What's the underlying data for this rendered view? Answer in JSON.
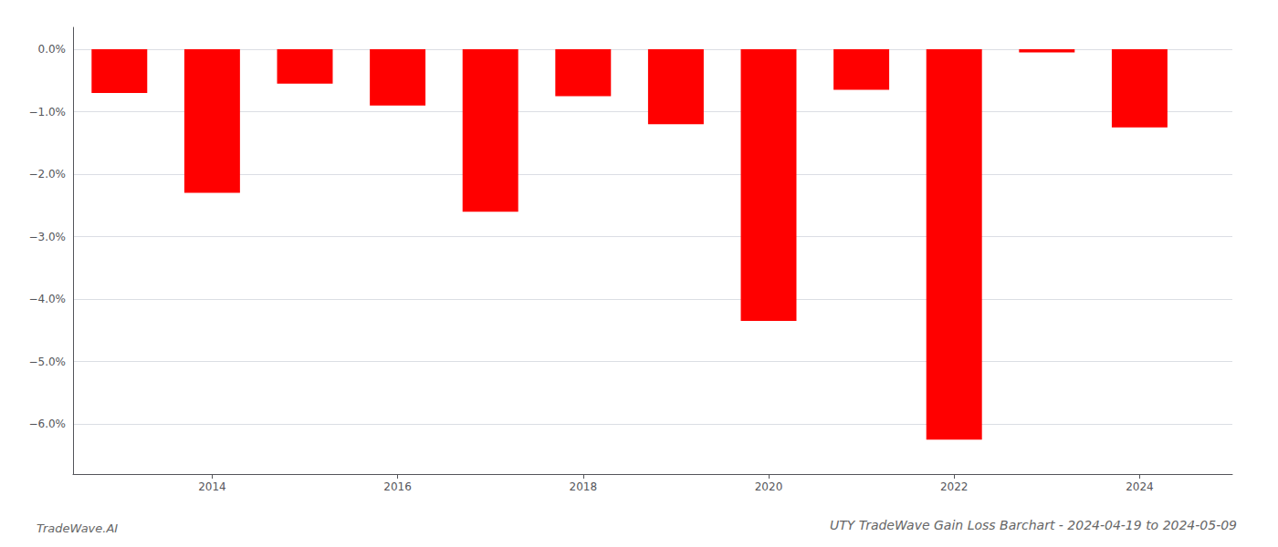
{
  "chart_data": {
    "type": "bar",
    "title": "UTY TradeWave Gain Loss Barchart - 2024-04-19 to 2024-05-09",
    "annotations": [
      "TradeWave.AI"
    ],
    "x": [
      2013,
      2014,
      2015,
      2016,
      2017,
      2018,
      2019,
      2020,
      2021,
      2022,
      2023,
      2024
    ],
    "values": [
      -0.7,
      -2.3,
      -0.55,
      -0.9,
      -2.6,
      -0.75,
      -1.2,
      -4.35,
      -0.65,
      -6.25,
      -0.05,
      -1.25
    ],
    "color": "#ff0000",
    "xlim": [
      2012.5,
      2025
    ],
    "xticks": [
      2014,
      2016,
      2018,
      2020,
      2022,
      2024
    ],
    "ylim": [
      -6.8,
      0.35
    ],
    "yticks": [
      {
        "value": 0.0,
        "label": "0.0%"
      },
      {
        "value": -1.0,
        "label": "−1.0%"
      },
      {
        "value": -2.0,
        "label": "−2.0%"
      },
      {
        "value": -3.0,
        "label": "−3.0%"
      },
      {
        "value": -4.0,
        "label": "−4.0%"
      },
      {
        "value": -5.0,
        "label": "−5.0%"
      },
      {
        "value": -6.0,
        "label": "−6.0%"
      }
    ],
    "grid": true
  }
}
